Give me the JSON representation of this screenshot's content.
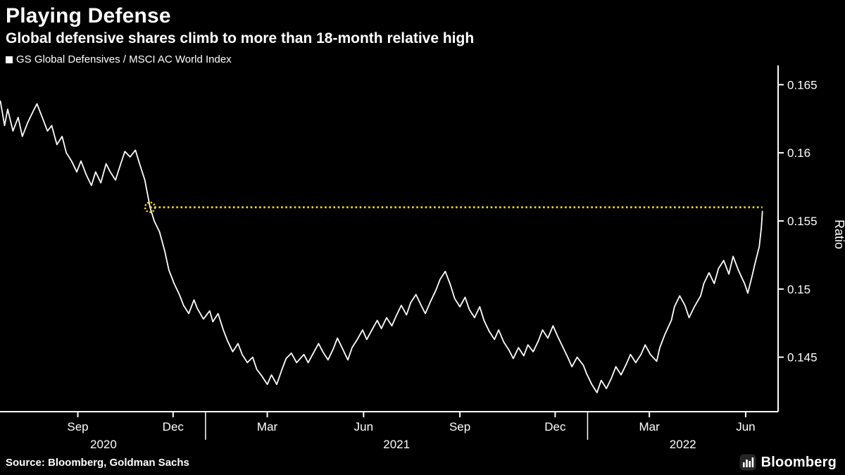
{
  "header": {
    "title": "Playing Defense",
    "subtitle": "Global defensive shares climb to more than 18-month relative high"
  },
  "legend": {
    "label": "GS Global Defensives / MSCI AC World Index",
    "swatch_color": "#ffffff"
  },
  "footer": {
    "source": "Source: Bloomberg, Goldman Sachs",
    "brand": "Bloomberg"
  },
  "chart_data": {
    "type": "line",
    "title": "Playing Defense",
    "subtitle": "Global defensive shares climb to more than 18-month relative high",
    "xlabel": "",
    "ylabel": "Ratio",
    "grid": false,
    "background": "#000000",
    "axis_color": "#ffffff",
    "y_min": 0.141,
    "y_max": 0.166,
    "yticks": [
      {
        "value": 0.165,
        "label": "0.165"
      },
      {
        "value": 0.16,
        "label": "0.16"
      },
      {
        "value": 0.155,
        "label": "0.155"
      },
      {
        "value": 0.15,
        "label": "0.15"
      },
      {
        "value": 0.145,
        "label": "0.145"
      }
    ],
    "x_start": "2020-06-20",
    "x_end": "2022-07-02",
    "month_ticks": [
      {
        "date": "2020-09-01",
        "label": "Sep"
      },
      {
        "date": "2020-12-01",
        "label": "Dec"
      },
      {
        "date": "2021-03-01",
        "label": "Mar"
      },
      {
        "date": "2021-06-01",
        "label": "Jun"
      },
      {
        "date": "2021-09-01",
        "label": "Sep"
      },
      {
        "date": "2021-12-01",
        "label": "Dec"
      },
      {
        "date": "2022-03-01",
        "label": "Mar"
      },
      {
        "date": "2022-06-01",
        "label": "Jun"
      }
    ],
    "year_ticks": [
      "2021-01-01",
      "2022-01-01"
    ],
    "year_labels": [
      "2020",
      "2021",
      "2022"
    ],
    "reference_line": {
      "value": 0.156,
      "start": "2020-11-09",
      "end": "2022-06-17",
      "color": "#f7e600",
      "style": "dotted",
      "marker": "dotted-circle-at-start"
    },
    "series": [
      {
        "name": "GS Global Defensives / MSCI AC World Index",
        "color": "#ffffff",
        "points": [
          [
            "2020-06-19",
            0.1638
          ],
          [
            "2020-06-23",
            0.162
          ],
          [
            "2020-06-26",
            0.1632
          ],
          [
            "2020-07-01",
            0.1616
          ],
          [
            "2020-07-06",
            0.1626
          ],
          [
            "2020-07-10",
            0.1612
          ],
          [
            "2020-07-15",
            0.1622
          ],
          [
            "2020-07-20",
            0.163
          ],
          [
            "2020-07-24",
            0.1636
          ],
          [
            "2020-07-29",
            0.1626
          ],
          [
            "2020-08-03",
            0.1616
          ],
          [
            "2020-08-07",
            0.162
          ],
          [
            "2020-08-12",
            0.1606
          ],
          [
            "2020-08-17",
            0.1612
          ],
          [
            "2020-08-21",
            0.16
          ],
          [
            "2020-08-26",
            0.1594
          ],
          [
            "2020-08-31",
            0.1586
          ],
          [
            "2020-09-04",
            0.1594
          ],
          [
            "2020-09-09",
            0.1584
          ],
          [
            "2020-09-14",
            0.1576
          ],
          [
            "2020-09-18",
            0.1586
          ],
          [
            "2020-09-23",
            0.1578
          ],
          [
            "2020-09-28",
            0.1592
          ],
          [
            "2020-10-02",
            0.1586
          ],
          [
            "2020-10-07",
            0.158
          ],
          [
            "2020-10-12",
            0.1592
          ],
          [
            "2020-10-16",
            0.1601
          ],
          [
            "2020-10-21",
            0.1597
          ],
          [
            "2020-10-26",
            0.1602
          ],
          [
            "2020-10-30",
            0.1592
          ],
          [
            "2020-11-04",
            0.158
          ],
          [
            "2020-11-09",
            0.156
          ],
          [
            "2020-11-13",
            0.155
          ],
          [
            "2020-11-18",
            0.1542
          ],
          [
            "2020-11-23",
            0.1528
          ],
          [
            "2020-11-27",
            0.1514
          ],
          [
            "2020-12-02",
            0.1504
          ],
          [
            "2020-12-07",
            0.1496
          ],
          [
            "2020-12-11",
            0.1488
          ],
          [
            "2020-12-16",
            0.1482
          ],
          [
            "2020-12-21",
            0.1492
          ],
          [
            "2020-12-24",
            0.1486
          ],
          [
            "2020-12-30",
            0.1478
          ],
          [
            "2021-01-05",
            0.1484
          ],
          [
            "2021-01-08",
            0.1476
          ],
          [
            "2021-01-13",
            0.1482
          ],
          [
            "2021-01-18",
            0.147
          ],
          [
            "2021-01-22",
            0.1462
          ],
          [
            "2021-01-27",
            0.1454
          ],
          [
            "2021-02-01",
            0.146
          ],
          [
            "2021-02-05",
            0.1452
          ],
          [
            "2021-02-10",
            0.1446
          ],
          [
            "2021-02-15",
            0.145
          ],
          [
            "2021-02-19",
            0.1441
          ],
          [
            "2021-02-24",
            0.1436
          ],
          [
            "2021-03-01",
            0.143
          ],
          [
            "2021-03-05",
            0.1437
          ],
          [
            "2021-03-10",
            0.143
          ],
          [
            "2021-03-15",
            0.1441
          ],
          [
            "2021-03-19",
            0.1449
          ],
          [
            "2021-03-24",
            0.1453
          ],
          [
            "2021-03-29",
            0.1446
          ],
          [
            "2021-04-05",
            0.1452
          ],
          [
            "2021-04-09",
            0.1446
          ],
          [
            "2021-04-14",
            0.1453
          ],
          [
            "2021-04-19",
            0.146
          ],
          [
            "2021-04-23",
            0.1454
          ],
          [
            "2021-04-28",
            0.1448
          ],
          [
            "2021-05-03",
            0.1456
          ],
          [
            "2021-05-07",
            0.1464
          ],
          [
            "2021-05-12",
            0.1456
          ],
          [
            "2021-05-17",
            0.1448
          ],
          [
            "2021-05-21",
            0.1457
          ],
          [
            "2021-05-26",
            0.1463
          ],
          [
            "2021-05-31",
            0.147
          ],
          [
            "2021-06-04",
            0.1463
          ],
          [
            "2021-06-09",
            0.147
          ],
          [
            "2021-06-14",
            0.1477
          ],
          [
            "2021-06-18",
            0.1471
          ],
          [
            "2021-06-23",
            0.1479
          ],
          [
            "2021-06-28",
            0.1473
          ],
          [
            "2021-07-02",
            0.148
          ],
          [
            "2021-07-07",
            0.1488
          ],
          [
            "2021-07-12",
            0.1481
          ],
          [
            "2021-07-16",
            0.149
          ],
          [
            "2021-07-21",
            0.1496
          ],
          [
            "2021-07-26",
            0.1488
          ],
          [
            "2021-07-30",
            0.1482
          ],
          [
            "2021-08-04",
            0.1491
          ],
          [
            "2021-08-09",
            0.1499
          ],
          [
            "2021-08-13",
            0.1507
          ],
          [
            "2021-08-18",
            0.1513
          ],
          [
            "2021-08-23",
            0.1503
          ],
          [
            "2021-08-27",
            0.1493
          ],
          [
            "2021-09-01",
            0.1487
          ],
          [
            "2021-09-06",
            0.1494
          ],
          [
            "2021-09-10",
            0.1485
          ],
          [
            "2021-09-15",
            0.1479
          ],
          [
            "2021-09-20",
            0.1487
          ],
          [
            "2021-09-24",
            0.1477
          ],
          [
            "2021-09-29",
            0.1469
          ],
          [
            "2021-10-04",
            0.1463
          ],
          [
            "2021-10-08",
            0.147
          ],
          [
            "2021-10-13",
            0.1461
          ],
          [
            "2021-10-18",
            0.1455
          ],
          [
            "2021-10-22",
            0.1449
          ],
          [
            "2021-10-27",
            0.1457
          ],
          [
            "2021-11-01",
            0.1451
          ],
          [
            "2021-11-05",
            0.1459
          ],
          [
            "2021-11-10",
            0.1454
          ],
          [
            "2021-11-15",
            0.1462
          ],
          [
            "2021-11-19",
            0.147
          ],
          [
            "2021-11-24",
            0.1464
          ],
          [
            "2021-11-29",
            0.1473
          ],
          [
            "2021-12-03",
            0.1466
          ],
          [
            "2021-12-08",
            0.1458
          ],
          [
            "2021-12-13",
            0.145
          ],
          [
            "2021-12-17",
            0.1443
          ],
          [
            "2021-12-22",
            0.145
          ],
          [
            "2021-12-28",
            0.1444
          ],
          [
            "2021-12-31",
            0.1438
          ],
          [
            "2022-01-05",
            0.143
          ],
          [
            "2022-01-10",
            0.1424
          ],
          [
            "2022-01-14",
            0.1433
          ],
          [
            "2022-01-19",
            0.1427
          ],
          [
            "2022-01-24",
            0.1435
          ],
          [
            "2022-01-28",
            0.1443
          ],
          [
            "2022-02-02",
            0.1437
          ],
          [
            "2022-02-07",
            0.1445
          ],
          [
            "2022-02-11",
            0.1452
          ],
          [
            "2022-02-16",
            0.1446
          ],
          [
            "2022-02-21",
            0.1452
          ],
          [
            "2022-02-25",
            0.1459
          ],
          [
            "2022-03-02",
            0.1452
          ],
          [
            "2022-03-08",
            0.1447
          ],
          [
            "2022-03-11",
            0.1457
          ],
          [
            "2022-03-16",
            0.1467
          ],
          [
            "2022-03-22",
            0.1477
          ],
          [
            "2022-03-25",
            0.1487
          ],
          [
            "2022-03-30",
            0.1495
          ],
          [
            "2022-04-04",
            0.1488
          ],
          [
            "2022-04-08",
            0.1479
          ],
          [
            "2022-04-13",
            0.1487
          ],
          [
            "2022-04-19",
            0.1495
          ],
          [
            "2022-04-22",
            0.1504
          ],
          [
            "2022-04-27",
            0.1512
          ],
          [
            "2022-05-02",
            0.1504
          ],
          [
            "2022-05-06",
            0.1515
          ],
          [
            "2022-05-11",
            0.1521
          ],
          [
            "2022-05-16",
            0.1511
          ],
          [
            "2022-05-20",
            0.1524
          ],
          [
            "2022-05-25",
            0.1514
          ],
          [
            "2022-05-31",
            0.1504
          ],
          [
            "2022-06-03",
            0.1497
          ],
          [
            "2022-06-07",
            0.1509
          ],
          [
            "2022-06-10",
            0.1519
          ],
          [
            "2022-06-14",
            0.1531
          ],
          [
            "2022-06-16",
            0.1545
          ],
          [
            "2022-06-17",
            0.1557
          ]
        ]
      }
    ]
  }
}
